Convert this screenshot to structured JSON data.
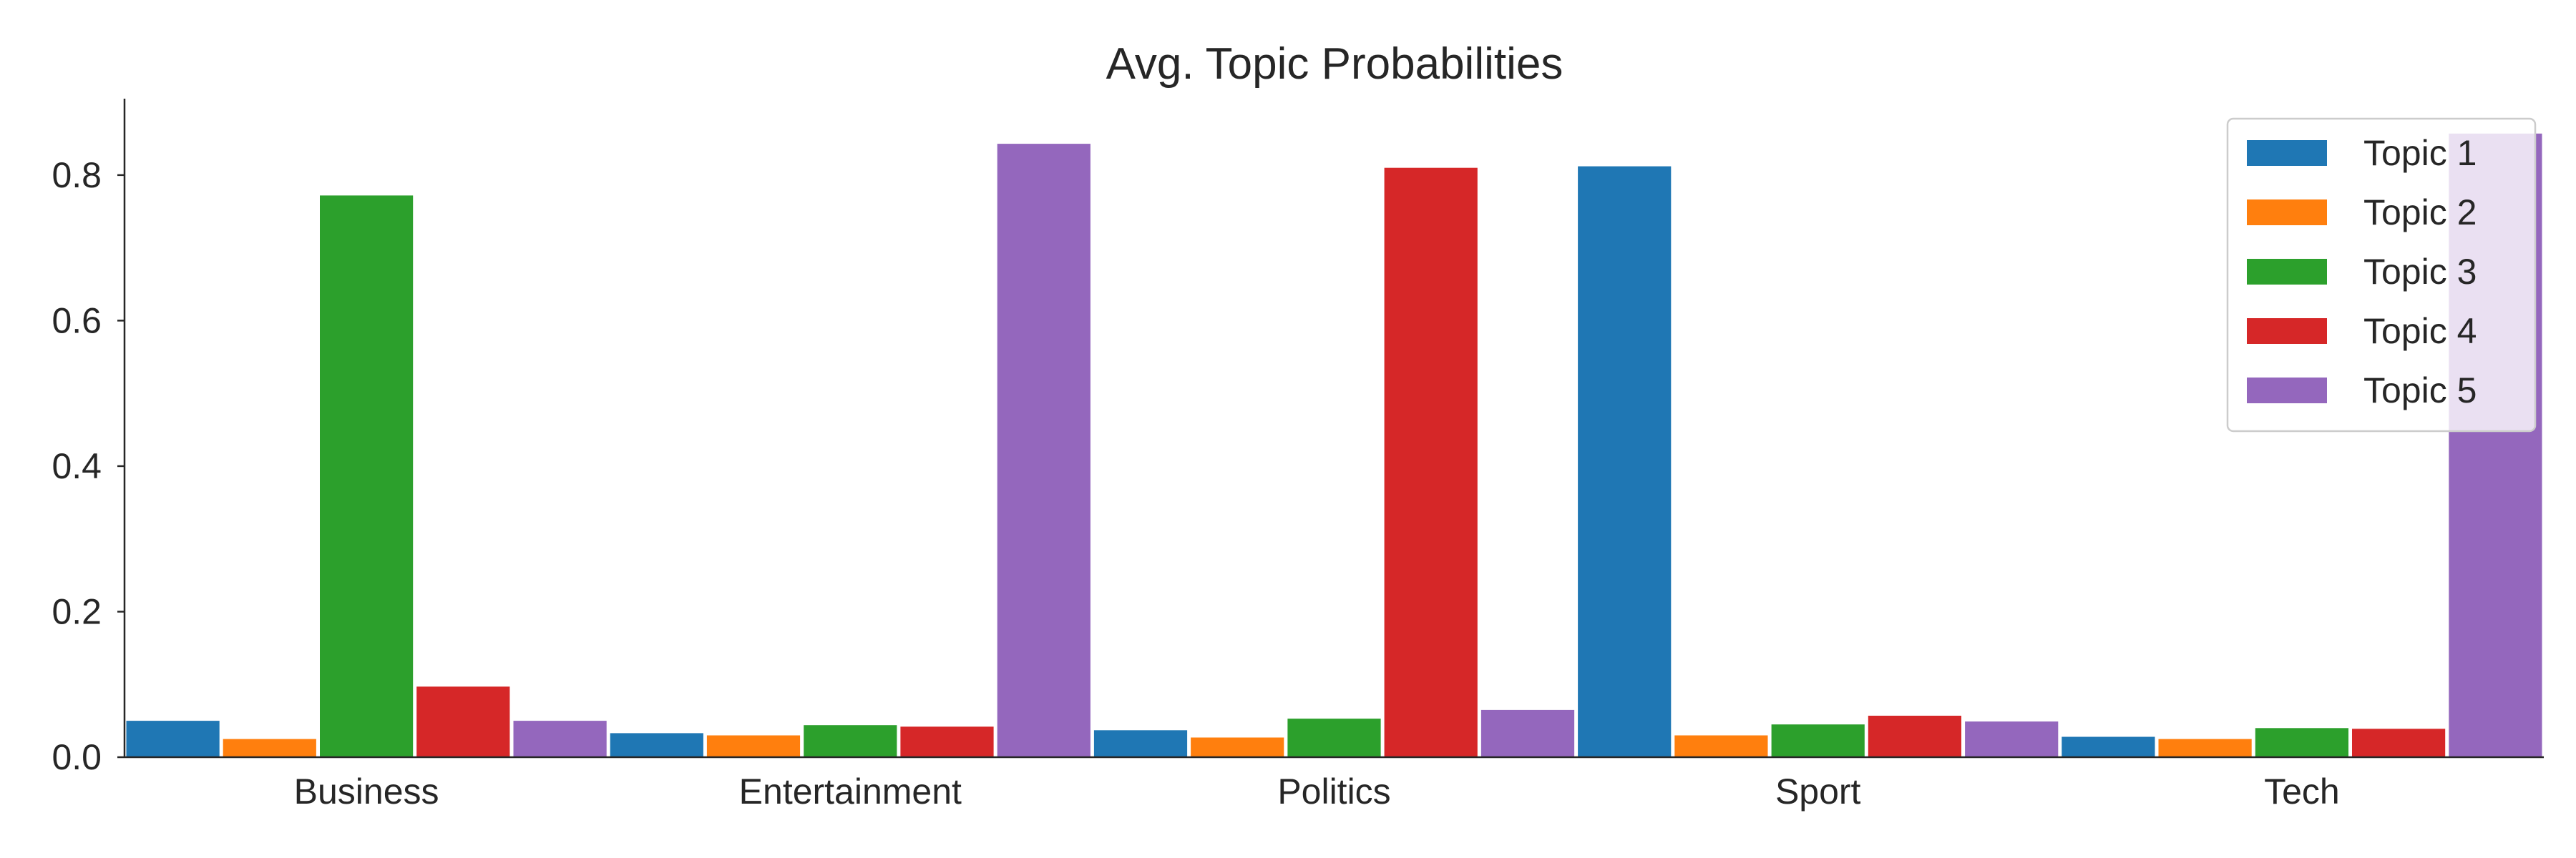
{
  "chart_data": {
    "type": "bar",
    "title": "Avg. Topic Probabilities",
    "xlabel": "",
    "ylabel": "",
    "categories": [
      "Business",
      "Entertainment",
      "Politics",
      "Sport",
      "Tech"
    ],
    "ylim": [
      0,
      0.905
    ],
    "yticks": [
      "0.0",
      "0.2",
      "0.4",
      "0.6",
      "0.8"
    ],
    "grid": false,
    "legend_position": "top-right",
    "series": [
      {
        "name": "Topic 1",
        "color": "#1f77b4",
        "values": [
          0.05,
          0.033,
          0.037,
          0.812,
          0.028
        ]
      },
      {
        "name": "Topic 2",
        "color": "#ff7f0e",
        "values": [
          0.025,
          0.03,
          0.027,
          0.03,
          0.025
        ]
      },
      {
        "name": "Topic 3",
        "color": "#2ca02c",
        "values": [
          0.772,
          0.044,
          0.053,
          0.045,
          0.04
        ]
      },
      {
        "name": "Topic 4",
        "color": "#d62728",
        "values": [
          0.097,
          0.042,
          0.81,
          0.057,
          0.039
        ]
      },
      {
        "name": "Topic 5",
        "color": "#9467bd",
        "values": [
          0.05,
          0.843,
          0.065,
          0.049,
          0.857
        ]
      }
    ]
  }
}
